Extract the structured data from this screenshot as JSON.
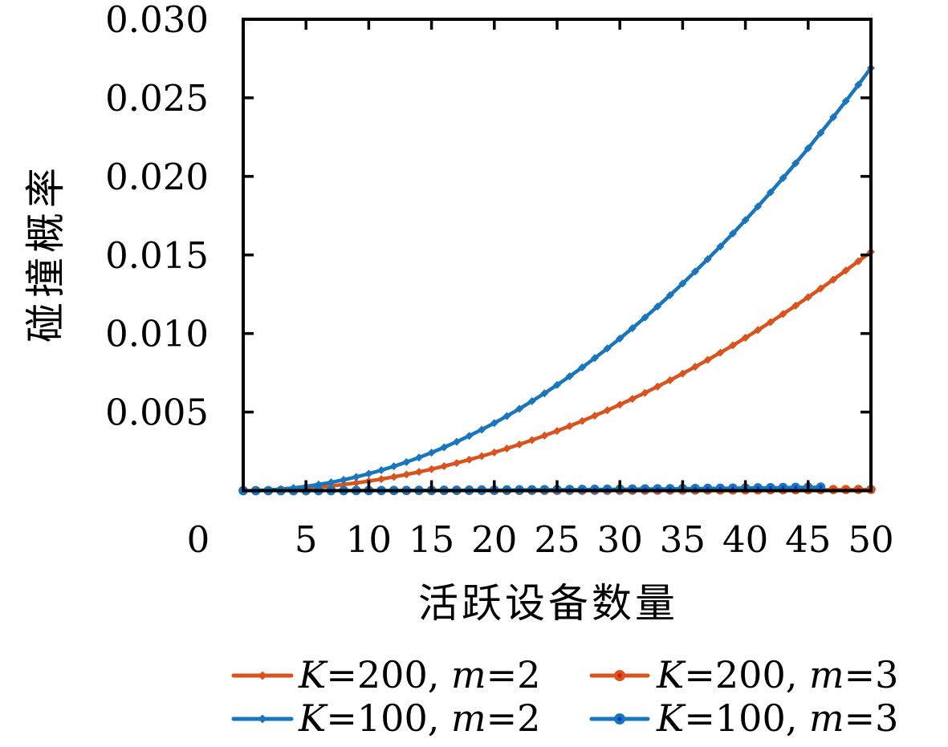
{
  "chart_data": {
    "type": "line",
    "title": "",
    "xlabel": "活跃设备数量",
    "ylabel": "碰撞概率",
    "xlim": [
      0,
      50
    ],
    "ylim": [
      0,
      0.03
    ],
    "grid": false,
    "legend_position": "below-plot, 2 columns",
    "x_tick_values": [
      0,
      5,
      10,
      15,
      20,
      25,
      30,
      35,
      40,
      45,
      50
    ],
    "x_tick_labels": [
      "0",
      "5",
      "10",
      "15",
      "20",
      "25",
      "30",
      "35",
      "40",
      "45",
      "50"
    ],
    "y_tick_values": [
      0.005,
      0.01,
      0.015,
      0.02,
      0.025,
      0.03
    ],
    "y_tick_labels": [
      "0.005",
      "0.010",
      "0.015",
      "0.020",
      "0.025",
      "0.030"
    ],
    "colors": {
      "orange": "#d8531e",
      "blue": "#1a76bc",
      "orange_core": "#e01212",
      "blue_core": "#1434d8",
      "axis": "#000000"
    },
    "series": [
      {
        "name": "K=200, m=3",
        "label": "K=200, m=3",
        "color": "#d8531e",
        "marker": "circle",
        "marker_core": "#e01212",
        "legend_index": 1,
        "x": [
          0,
          1,
          2,
          3,
          4,
          5,
          6,
          7,
          8,
          9,
          10,
          11,
          12,
          13,
          14,
          15,
          16,
          17,
          18,
          19,
          20,
          21,
          22,
          23,
          24,
          25,
          26,
          27,
          28,
          29,
          30,
          31,
          32,
          33,
          34,
          35,
          36,
          37,
          38,
          39,
          40,
          41,
          42,
          43,
          44,
          45,
          46,
          47,
          48,
          49,
          50
        ],
        "values": [
          0,
          0,
          1e-07,
          3e-07,
          5e-07,
          8e-07,
          1.1e-06,
          1.5e-06,
          1.9e-06,
          2.5e-06,
          3e-06,
          3.7e-06,
          4.4e-06,
          5.1e-06,
          6e-06,
          6.8e-06,
          7.8e-06,
          8.8e-06,
          9.8e-06,
          1.1e-05,
          1.22e-05,
          1.34e-05,
          1.47e-05,
          1.61e-05,
          1.75e-05,
          1.9e-05,
          2.06e-05,
          2.22e-05,
          2.38e-05,
          2.56e-05,
          2.74e-05,
          2.92e-05,
          3.11e-05,
          3.31e-05,
          3.51e-05,
          3.72e-05,
          3.94e-05,
          4.16e-05,
          4.39e-05,
          4.62e-05,
          4.86e-05,
          5.11e-05,
          5.36e-05,
          5.62e-05,
          5.89e-05,
          6.16e-05,
          6.43e-05,
          6.72e-05,
          7e-05,
          7.3e-05,
          7.6e-05
        ]
      },
      {
        "name": "K=200, m=2",
        "label": "K=200, m=2",
        "color": "#d8531e",
        "marker": "diamond",
        "marker_core": null,
        "legend_index": 0,
        "x": [
          1,
          2,
          3,
          4,
          5,
          6,
          7,
          8,
          9,
          10,
          11,
          12,
          13,
          14,
          15,
          16,
          17,
          18,
          19,
          20,
          21,
          22,
          23,
          24,
          25,
          26,
          27,
          28,
          29,
          30,
          31,
          32,
          33,
          34,
          35,
          36,
          37,
          38,
          39,
          40,
          41,
          42,
          43,
          44,
          45,
          46,
          47,
          48,
          49,
          50
        ],
        "values": [
          6e-06,
          2.4e-05,
          5.5e-05,
          9.7e-05,
          0.000152,
          0.000219,
          0.000298,
          0.000389,
          0.000492,
          0.000608,
          0.000736,
          0.000876,
          0.001028,
          0.001192,
          0.001368,
          0.001556,
          0.001757,
          0.00197,
          0.002195,
          0.002432,
          0.002681,
          0.002943,
          0.003216,
          0.003502,
          0.0038,
          0.00411,
          0.004432,
          0.004767,
          0.005113,
          0.005472,
          0.005843,
          0.006226,
          0.006621,
          0.007028,
          0.007448,
          0.00788,
          0.008323,
          0.008779,
          0.009248,
          0.009728,
          0.010221,
          0.010725,
          0.011242,
          0.011771,
          0.012312,
          0.012865,
          0.013431,
          0.014008,
          0.014598,
          0.0152
        ]
      },
      {
        "name": "K=100, m=2",
        "label": "K=100, m=2",
        "color": "#1a76bc",
        "marker": "diamond",
        "marker_core": null,
        "legend_index": 2,
        "x": [
          1,
          2,
          3,
          4,
          5,
          6,
          7,
          8,
          9,
          10,
          11,
          12,
          13,
          14,
          15,
          16,
          17,
          18,
          19,
          20,
          21,
          22,
          23,
          24,
          25,
          26,
          27,
          28,
          29,
          30,
          31,
          32,
          33,
          34,
          35,
          36,
          37,
          38,
          39,
          40,
          41,
          42,
          43,
          44,
          45,
          46,
          47,
          48,
          49,
          50
        ],
        "values": [
          1.1e-05,
          4.3e-05,
          9.7e-05,
          0.000172,
          0.000269,
          0.000387,
          0.000527,
          0.000689,
          0.000872,
          0.001076,
          0.001302,
          0.001549,
          0.001818,
          0.002109,
          0.002421,
          0.002755,
          0.00311,
          0.003486,
          0.003884,
          0.004304,
          0.004745,
          0.005208,
          0.005692,
          0.006198,
          0.006725,
          0.007274,
          0.007844,
          0.008436,
          0.009049,
          0.009684,
          0.01034,
          0.011018,
          0.011717,
          0.012438,
          0.013181,
          0.013945,
          0.01473,
          0.015537,
          0.016366,
          0.017216,
          0.018088,
          0.018981,
          0.019896,
          0.020832,
          0.021789,
          0.022769,
          0.023769,
          0.024791,
          0.025835,
          0.0269
        ]
      },
      {
        "name": "K=100, m=3",
        "label": "K=100, m=3",
        "color": "#1a76bc",
        "marker": "circle",
        "marker_core": "#1434d8",
        "legend_index": 3,
        "x": [
          0,
          1,
          2,
          3,
          4,
          5,
          6,
          7,
          8,
          9,
          10,
          11,
          12,
          13,
          14,
          15,
          16,
          17,
          18,
          19,
          20,
          21,
          22,
          23,
          24,
          25,
          26,
          27,
          28,
          29,
          30,
          31,
          32,
          33,
          34,
          35,
          36,
          37,
          38,
          39,
          40,
          41,
          42,
          43,
          44,
          45,
          46
        ],
        "values": [
          0,
          1e-07,
          4e-07,
          1e-06,
          1.7e-06,
          2.7e-06,
          3.9e-06,
          5.3e-06,
          6.9e-06,
          8.7e-06,
          1.08e-05,
          1.31e-05,
          1.56e-05,
          1.83e-05,
          2.12e-05,
          2.43e-05,
          2.76e-05,
          3.12e-05,
          3.5e-05,
          3.9e-05,
          4.32e-05,
          4.76e-05,
          5.23e-05,
          5.71e-05,
          6.22e-05,
          6.75e-05,
          7.3e-05,
          7.87e-05,
          8.47e-05,
          9.08e-05,
          9.72e-05,
          0.0001038,
          0.0001106,
          0.0001176,
          0.0001248,
          0.0001323,
          0.00014,
          0.0001478,
          0.0001559,
          0.0001643,
          0.0001728,
          0.0001815,
          0.0001905,
          0.0001997,
          0.0002091,
          0.0002187,
          0.0002285
        ]
      }
    ]
  }
}
